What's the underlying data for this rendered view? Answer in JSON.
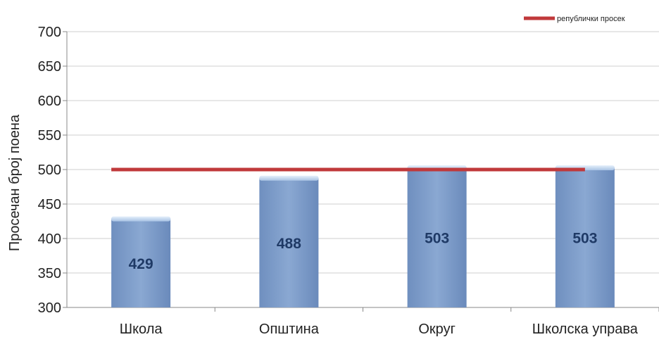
{
  "chart_data": {
    "type": "bar",
    "categories": [
      "Школа",
      "Општина",
      "Округ",
      "Школска управа"
    ],
    "values": [
      429,
      488,
      503,
      503
    ],
    "data_labels": [
      "429",
      "488",
      "503",
      "503"
    ],
    "ylabel": "Просечан број поена",
    "xlabel": "",
    "ylim": [
      300,
      700
    ],
    "yticks": [
      300,
      350,
      400,
      450,
      500,
      550,
      600,
      650,
      700
    ],
    "grid": true,
    "bar_color": "#7b9cc8",
    "reference_line": {
      "name": "републички просек",
      "value": 500,
      "color": "#c0393b"
    },
    "legend": {
      "position": "top-right",
      "entries": [
        "републички просек"
      ]
    }
  }
}
